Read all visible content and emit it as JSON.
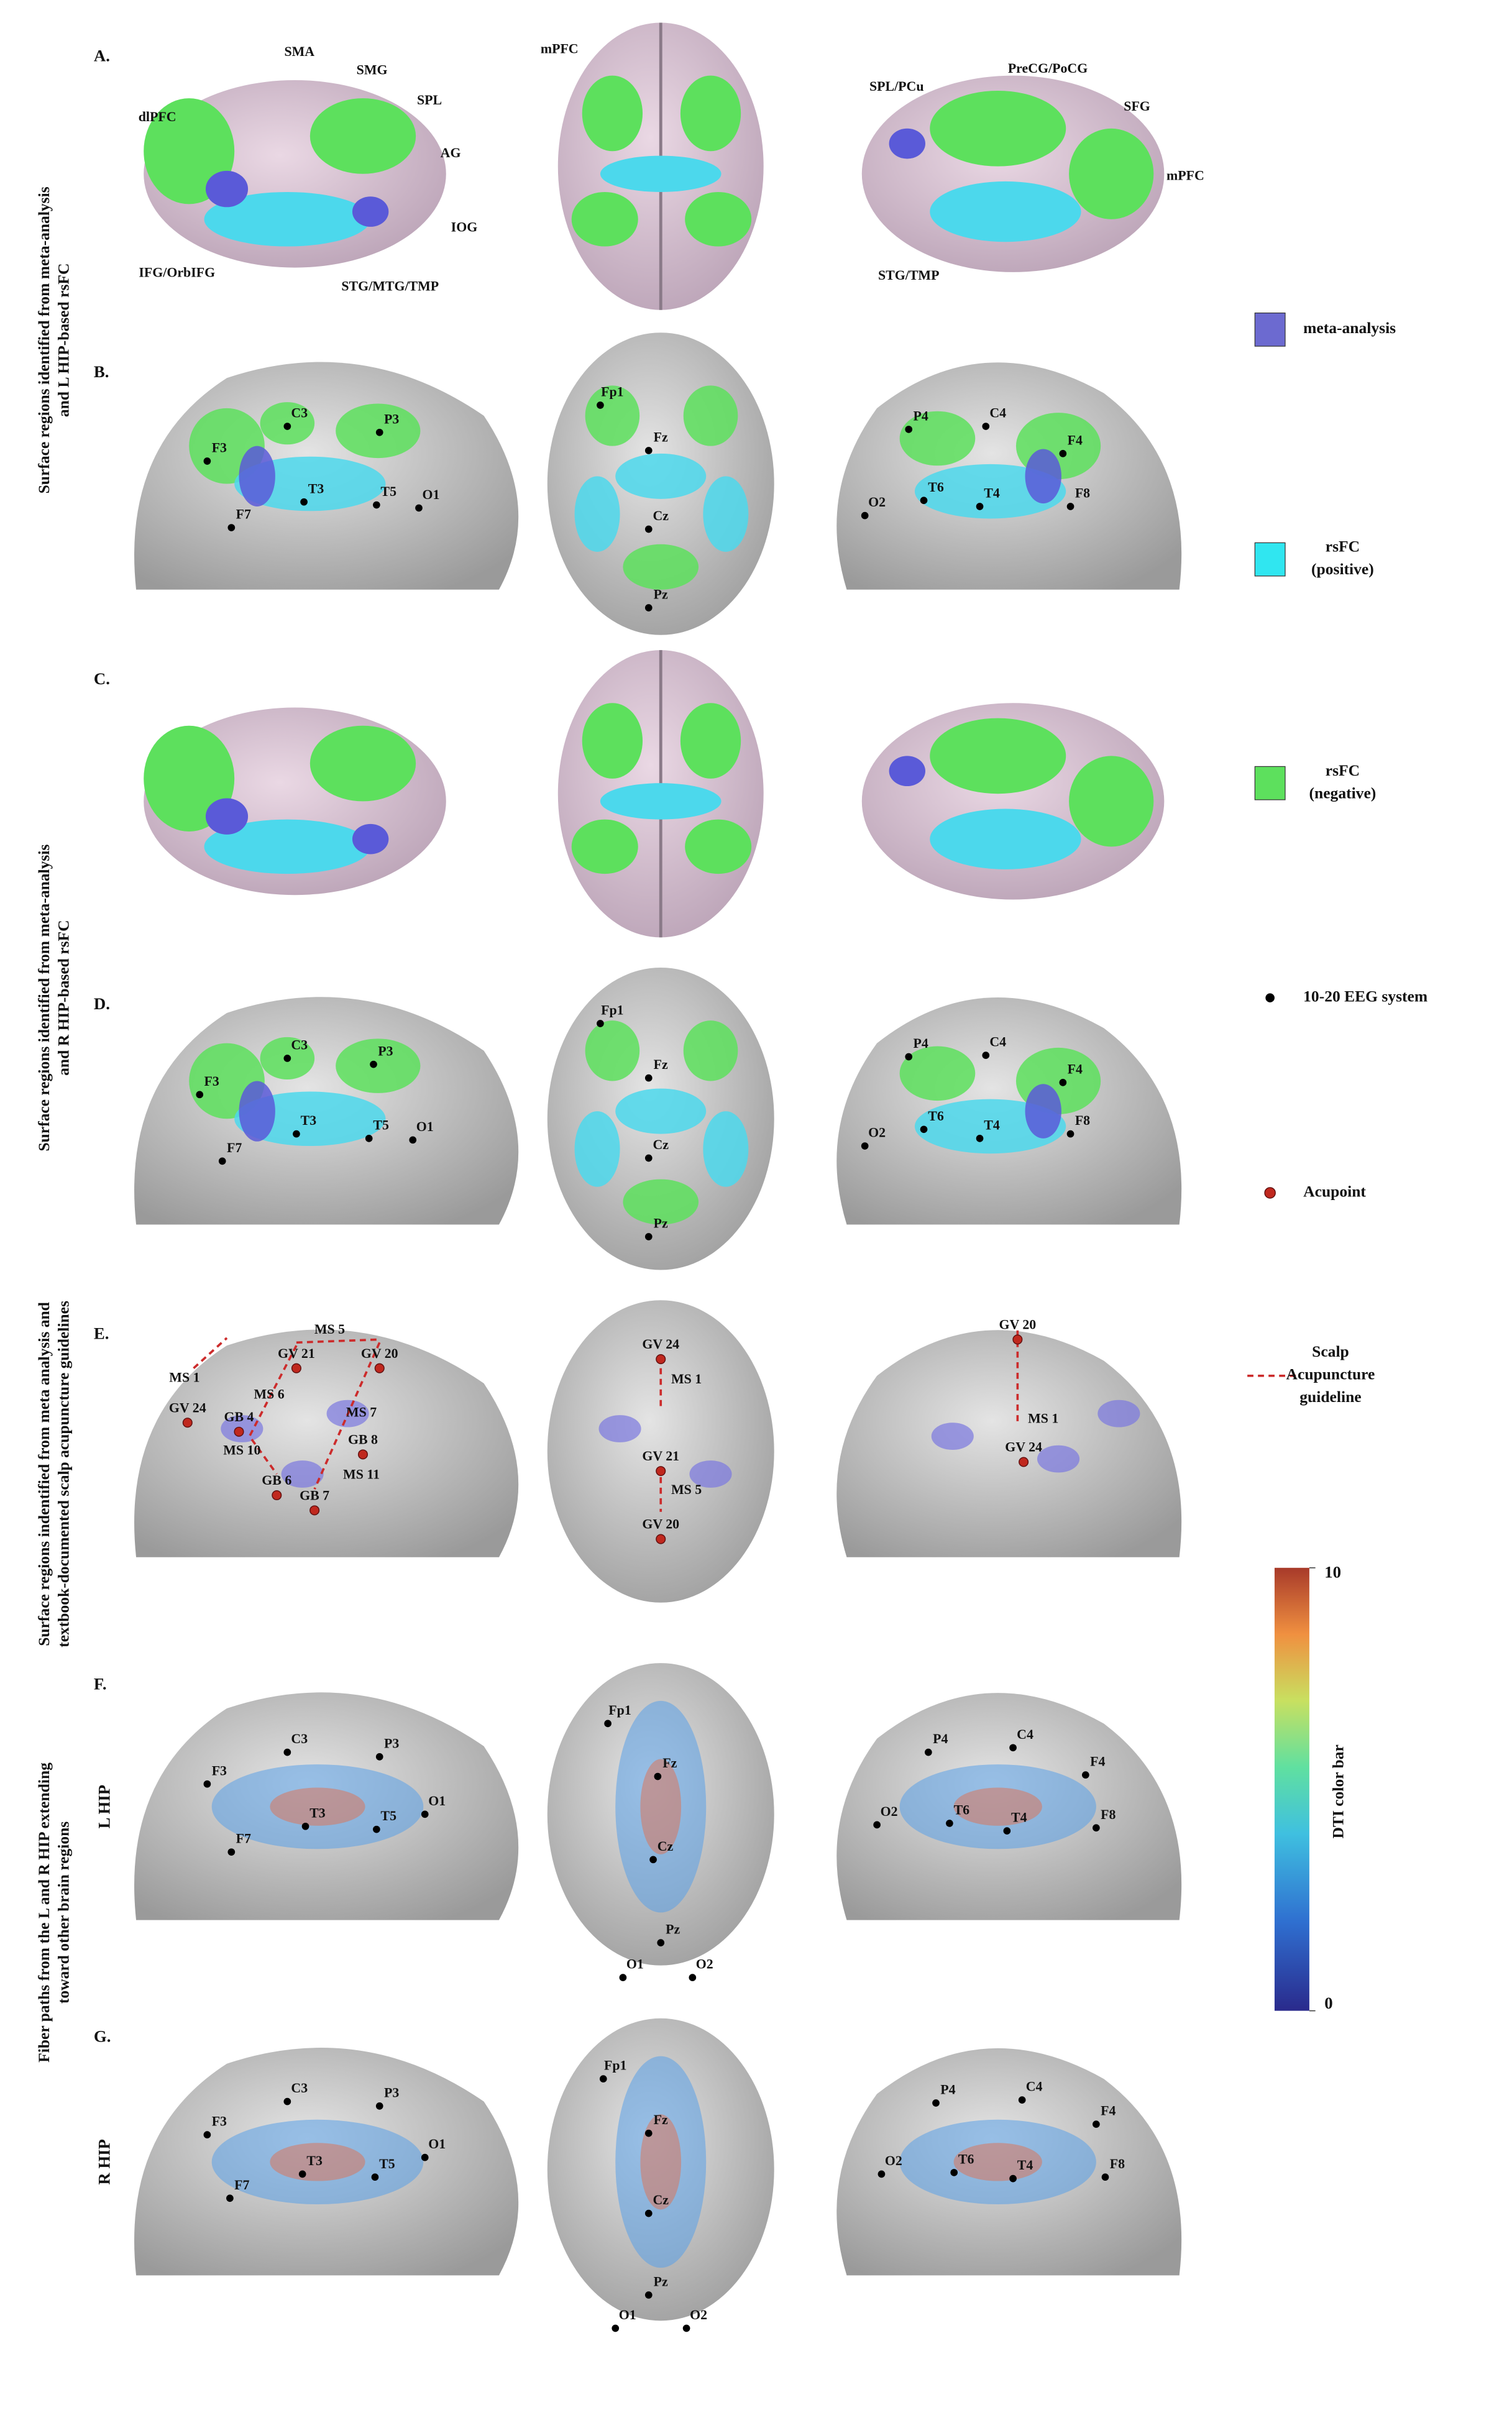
{
  "panels": [
    {
      "letter": "A.",
      "labels": [
        "SMA",
        "SMG",
        "SPL",
        "dlPFC",
        "AG",
        "IOG",
        "IFG/OrbIFG",
        "STG/MTG/TMP",
        "mPFC",
        "SPL/PCu",
        "PreCG/PoCG",
        "SFG",
        "mPFC",
        "STG/TMP"
      ]
    },
    {
      "letter": "B.",
      "labels": [
        "C3",
        "P3",
        "F3",
        "T3",
        "T5",
        "O1",
        "F7",
        "Fp1",
        "Fz",
        "Cz",
        "Pz",
        "P4",
        "C4",
        "F4",
        "O2",
        "T6",
        "T4",
        "F8"
      ]
    },
    {
      "letter": "C."
    },
    {
      "letter": "D.",
      "labels": [
        "C3",
        "P3",
        "F3",
        "T3",
        "T5",
        "O1",
        "F7",
        "Fp1",
        "Fz",
        "Cz",
        "Pz",
        "P4",
        "C4",
        "F4",
        "O2",
        "T6",
        "T4",
        "F8"
      ]
    },
    {
      "letter": "E.",
      "labels": [
        "MS 5",
        "GV 21",
        "GV 20",
        "MS 1",
        "GV 24",
        "MS 6",
        "MS 7",
        "GB 4",
        "GB 8",
        "MS 10",
        "GB 6",
        "MS 11",
        "GB 7",
        "GV 24",
        "MS 1",
        "GV 21",
        "MS 5",
        "GV 20",
        "GV 20",
        "MS 1",
        "GV 24"
      ]
    },
    {
      "letter": "F.",
      "labels": [
        "C3",
        "P3",
        "F3",
        "O1",
        "T3",
        "T5",
        "F7",
        "Fp1",
        "Fz",
        "Cz",
        "Pz",
        "O1",
        "O2",
        "P4",
        "C4",
        "F4",
        "O2",
        "T6",
        "T4",
        "F8"
      ]
    },
    {
      "letter": "G.",
      "labels": [
        "C3",
        "P3",
        "F3",
        "O1",
        "T3",
        "T5",
        "F7",
        "Fp1",
        "Fz",
        "Cz",
        "Pz",
        "O1",
        "O2",
        "P4",
        "C4",
        "F4",
        "O2",
        "T6",
        "T4",
        "F8"
      ]
    }
  ],
  "row_titles": [
    {
      "lines": [
        "Surface regions identified from meta-analysis",
        "and L HIP-based rsFC"
      ]
    },
    {
      "lines": [
        "Surface regions identified from meta-analysis",
        "and R HIP-based rsFC"
      ]
    },
    {
      "lines": [
        "Surface regions indentified from meta analysis and",
        "textbook-documented scalp acupuncture guidelines"
      ]
    },
    {
      "lines": [
        "Fiber paths from the L and R HIP extending",
        "toward other brain regions"
      ]
    }
  ],
  "hip_labels": [
    "L HIP",
    "R HIP"
  ],
  "legend": [
    {
      "lines": [
        "meta-analysis"
      ]
    },
    {
      "lines": [
        "rsFC",
        "(positive)"
      ]
    },
    {
      "lines": [
        "rsFC",
        "(negative)"
      ]
    },
    {
      "lines": [
        "10-20 EEG system"
      ]
    },
    {
      "lines": [
        "Acupoint"
      ]
    },
    {
      "lines": [
        "Scalp",
        "Acupuncture",
        "guideline"
      ]
    }
  ],
  "colorbar": {
    "label": "DTI color bar",
    "ticks": [
      0,
      10
    ]
  }
}
